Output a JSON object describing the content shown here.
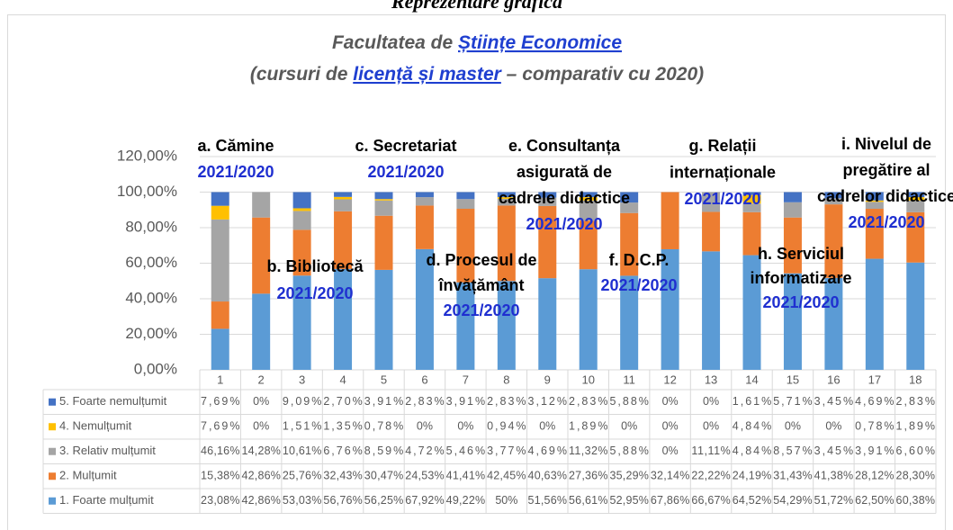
{
  "heading": "Reprezentare grafică",
  "chart_data": {
    "type": "stacked_bar",
    "title_parts": [
      "Facultatea de ",
      "Științe Economice"
    ],
    "subtitle_parts": [
      "(cursuri de ",
      "licență și master",
      " – comparativ cu 2020)"
    ],
    "categories": [
      "1",
      "2",
      "3",
      "4",
      "5",
      "6",
      "7",
      "8",
      "9",
      "10",
      "11",
      "12",
      "13",
      "14",
      "15",
      "16",
      "17",
      "18"
    ],
    "ylim": [
      0,
      120
    ],
    "yticks": [
      {
        "value": 0,
        "label": "0,00%"
      },
      {
        "value": 20,
        "label": "20,00%"
      },
      {
        "value": 40,
        "label": "40,00%"
      },
      {
        "value": 60,
        "label": "60,00%"
      },
      {
        "value": 80,
        "label": "80,00%"
      },
      {
        "value": 100,
        "label": "100,00%"
      },
      {
        "value": 120,
        "label": "120,00%"
      }
    ],
    "series": [
      {
        "name": "1. Foarte mulțumit",
        "color": "#5b9bd5",
        "values": [
          23.08,
          42.86,
          53.03,
          56.76,
          56.25,
          67.92,
          49.22,
          50,
          51.56,
          56.61,
          52.95,
          67.86,
          66.67,
          64.52,
          54.29,
          51.72,
          62.5,
          60.38
        ],
        "value_labels": [
          "23,08%",
          "42,86%",
          "53,03%",
          "56,76%",
          "56,25%",
          "67,92%",
          "49,22%",
          "50%",
          "51,56%",
          "56,61%",
          "52,95%",
          "67,86%",
          "66,67%",
          "64,52%",
          "54,29%",
          "51,72%",
          "62,50%",
          "60,38%"
        ]
      },
      {
        "name": "2. Mulțumit",
        "color": "#ed7d31",
        "values": [
          15.38,
          42.86,
          25.76,
          32.43,
          30.47,
          24.53,
          41.41,
          42.45,
          40.63,
          27.36,
          35.29,
          32.14,
          22.22,
          24.19,
          31.43,
          41.38,
          28.12,
          28.3
        ],
        "value_labels": [
          "15,38%",
          "42,86%",
          "25,76%",
          "32,43%",
          "30,47%",
          "24,53%",
          "41,41%",
          "42,45%",
          "40,63%",
          "27,36%",
          "35,29%",
          "32,14%",
          "22,22%",
          "24,19%",
          "31,43%",
          "41,38%",
          "28,12%",
          "28,30%"
        ]
      },
      {
        "name": "3. Relativ mulțumit",
        "color": "#a5a5a5",
        "values": [
          46.16,
          14.28,
          10.61,
          6.76,
          8.59,
          4.72,
          5.46,
          3.77,
          4.69,
          11.32,
          5.88,
          0,
          11.11,
          4.84,
          8.57,
          3.45,
          3.91,
          6.6
        ],
        "value_labels": [
          "46,16%",
          "14,28%",
          "10,61%",
          "6,76%",
          "8,59%",
          "4,72%",
          "5,46%",
          "3,77%",
          "4,69%",
          "11,32%",
          "5,88%",
          "0%",
          "11,11%",
          "4,84%",
          "8,57%",
          "3,45%",
          "3,91%",
          "6,60%"
        ]
      },
      {
        "name": "4. Nemulțumit",
        "color": "#ffc000",
        "values": [
          7.69,
          0,
          1.51,
          1.35,
          0.78,
          0,
          0,
          0.94,
          0,
          1.89,
          0,
          0,
          0,
          4.84,
          0,
          0,
          0.78,
          1.89
        ],
        "value_labels": [
          "7,69%",
          "0%",
          "1,51%",
          "1,35%",
          "0,78%",
          "0%",
          "0%",
          "0,94%",
          "0%",
          "1,89%",
          "0%",
          "0%",
          "0%",
          "4,84%",
          "0%",
          "0%",
          "0,78%",
          "1,89%"
        ]
      },
      {
        "name": "5. Foarte nemulțumit",
        "color": "#4472c4",
        "values": [
          7.69,
          0,
          9.09,
          2.7,
          3.91,
          2.83,
          3.91,
          2.83,
          3.12,
          2.83,
          5.88,
          0,
          0,
          1.61,
          5.71,
          3.45,
          4.69,
          2.83
        ],
        "value_labels": [
          "7,69%",
          "0%",
          "9,09%",
          "2,70%",
          "3,91%",
          "2,83%",
          "3,91%",
          "2,83%",
          "3,12%",
          "2,83%",
          "5,88%",
          "0%",
          "0%",
          "1,61%",
          "5,71%",
          "3,45%",
          "4,69%",
          "2,83%"
        ]
      }
    ],
    "annotations": [
      {
        "lines": [
          "a. Cămine"
        ],
        "year": "2021/2020"
      },
      {
        "lines": [
          "b. Bibliotecă"
        ],
        "year": "2021/2020"
      },
      {
        "lines": [
          "c. Secretariat"
        ],
        "year": "2021/2020"
      },
      {
        "lines": [
          "d. Procesul de",
          "învățământ"
        ],
        "year": "2021/2020"
      },
      {
        "lines": [
          "e. Consultanța",
          "asigurată de",
          "cadrele didactice"
        ],
        "year": "2021/2020"
      },
      {
        "lines": [
          "f. D.C.P."
        ],
        "year": "2021/2020"
      },
      {
        "lines": [
          "g. Relații",
          "internaționale"
        ],
        "year": "2021/2020"
      },
      {
        "lines": [
          "h. Serviciul",
          "informatizare"
        ],
        "year": "2021/2020"
      },
      {
        "lines": [
          "i. Nivelul de",
          "pregătire al",
          "cadrelor didactice"
        ],
        "year": "2021/2020"
      }
    ]
  }
}
